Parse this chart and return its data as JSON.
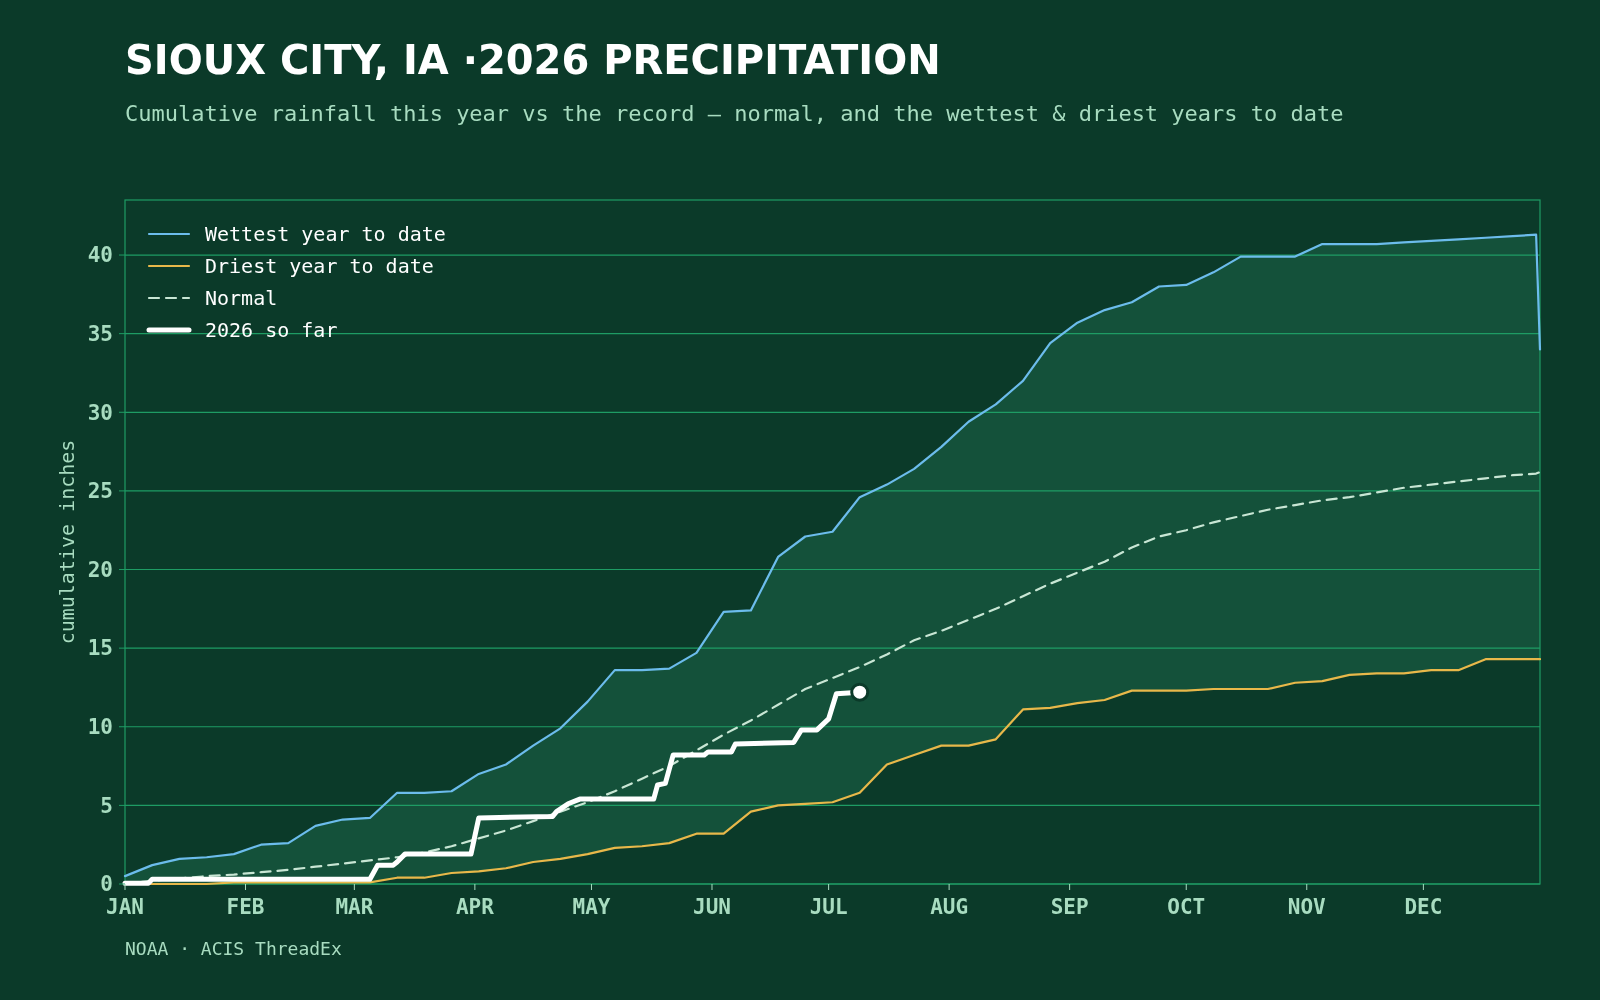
{
  "chart_data": {
    "type": "line",
    "title": "SIOUX CITY, IA ·2026 PRECIPITATION",
    "subtitle": "Cumulative rainfall this year vs the record — normal, and the wettest & driest years to date",
    "ylabel": "cumulative inches",
    "annotations": [
      "NOAA · ACIS ThreadEx"
    ],
    "x": [
      "2026-01-01",
      "2026-01-08",
      "2026-01-15",
      "2026-01-22",
      "2026-01-29",
      "2026-02-05",
      "2026-02-12",
      "2026-02-19",
      "2026-02-26",
      "2026-03-05",
      "2026-03-12",
      "2026-03-19",
      "2026-03-26",
      "2026-04-02",
      "2026-04-09",
      "2026-04-16",
      "2026-04-23",
      "2026-04-30",
      "2026-05-07",
      "2026-05-14",
      "2026-05-21",
      "2026-05-28",
      "2026-06-04",
      "2026-06-11",
      "2026-06-18",
      "2026-06-25",
      "2026-07-02",
      "2026-07-09",
      "2026-07-16",
      "2026-07-23",
      "2026-07-30",
      "2026-08-06",
      "2026-08-13",
      "2026-08-20",
      "2026-08-27",
      "2026-09-03",
      "2026-09-10",
      "2026-09-17",
      "2026-09-24",
      "2026-10-01",
      "2026-10-08",
      "2026-10-15",
      "2026-10-22",
      "2026-10-29",
      "2026-11-05",
      "2026-11-12",
      "2026-11-19",
      "2026-11-26",
      "2026-12-03",
      "2026-12-10",
      "2026-12-17",
      "2026-12-24",
      "2026-12-30",
      "2026-12-31"
    ],
    "xlim": [
      "2026-01-01",
      "2026-12-31"
    ],
    "xticks": [
      {
        "value": "2026-01-01",
        "label": "JAN"
      },
      {
        "value": "2026-02-01",
        "label": "FEB"
      },
      {
        "value": "2026-03-01",
        "label": "MAR"
      },
      {
        "value": "2026-04-01",
        "label": "APR"
      },
      {
        "value": "2026-05-01",
        "label": "MAY"
      },
      {
        "value": "2026-06-01",
        "label": "JUN"
      },
      {
        "value": "2026-07-01",
        "label": "JUL"
      },
      {
        "value": "2026-08-01",
        "label": "AUG"
      },
      {
        "value": "2026-09-01",
        "label": "SEP"
      },
      {
        "value": "2026-10-01",
        "label": "OCT"
      },
      {
        "value": "2026-11-01",
        "label": "NOV"
      },
      {
        "value": "2026-12-01",
        "label": "DEC"
      }
    ],
    "ylim": [
      0,
      43.5
    ],
    "yticks": [
      0,
      5,
      10,
      15,
      20,
      25,
      30,
      35,
      40
    ],
    "grid": "y",
    "legend": "top left",
    "series": [
      {
        "name": "Wettest year to date",
        "color": "#6cbcec",
        "values": [
          0.5,
          1.2,
          1.6,
          1.7,
          1.9,
          2.5,
          2.6,
          3.7,
          4.1,
          4.2,
          5.8,
          5.8,
          5.9,
          7.0,
          7.6,
          8.8,
          9.9,
          11.6,
          13.6,
          13.6,
          13.7,
          14.7,
          17.3,
          17.4,
          20.8,
          22.1,
          22.4,
          24.6,
          25.4,
          26.4,
          27.8,
          29.4,
          30.5,
          32.0,
          34.4,
          35.7,
          36.5,
          37.0,
          38.0,
          38.1,
          38.9,
          39.9,
          39.9,
          39.9,
          40.7,
          40.7,
          40.7,
          40.8,
          40.9,
          41.0,
          41.1,
          41.2,
          41.3,
          34.0
        ]
      },
      {
        "name": "Driest year to date",
        "color": "#e8b84a",
        "values": [
          0,
          0,
          0,
          0,
          0.1,
          0.1,
          0.1,
          0.1,
          0.1,
          0.1,
          0.4,
          0.4,
          0.7,
          0.8,
          1.0,
          1.4,
          1.6,
          1.9,
          2.3,
          2.4,
          2.6,
          3.2,
          3.2,
          4.6,
          5.0,
          5.1,
          5.2,
          5.8,
          7.6,
          8.2,
          8.8,
          8.8,
          9.2,
          11.1,
          11.2,
          11.5,
          11.7,
          12.3,
          12.3,
          12.3,
          12.4,
          12.4,
          12.4,
          12.8,
          12.9,
          13.3,
          13.4,
          13.4,
          13.6,
          13.6,
          14.3,
          14.3,
          14.3,
          14.3
        ]
      },
      {
        "name": "Normal",
        "color": "#c8e6d4",
        "line_style": "dashed",
        "values": [
          0.05,
          0.2,
          0.35,
          0.5,
          0.6,
          0.75,
          0.9,
          1.1,
          1.3,
          1.5,
          1.7,
          2.0,
          2.4,
          2.9,
          3.4,
          4.0,
          4.6,
          5.2,
          5.9,
          6.7,
          7.5,
          8.5,
          9.5,
          10.4,
          11.4,
          12.4,
          13.1,
          13.8,
          14.6,
          15.5,
          16.1,
          16.8,
          17.5,
          18.3,
          19.1,
          19.8,
          20.5,
          21.4,
          22.1,
          22.5,
          23.0,
          23.4,
          23.8,
          24.1,
          24.4,
          24.6,
          24.9,
          25.2,
          25.4,
          25.6,
          25.8,
          26.0,
          26.1,
          26.2
        ],
        "lower": [
          0,
          0,
          0,
          0,
          0.1,
          0.1,
          0.1,
          0.1,
          0.1,
          0.1,
          0.4,
          0.4,
          0.7,
          0.8,
          1.0,
          1.4,
          1.6,
          1.9,
          2.3,
          2.4,
          2.6,
          3.2,
          3.2,
          4.6,
          5.0,
          5.1,
          5.2,
          5.8,
          7.6,
          8.2,
          8.8,
          8.8,
          9.2,
          11.1,
          11.2,
          11.5,
          11.7,
          12.3,
          12.3,
          12.3,
          12.4,
          12.4,
          12.4,
          12.8,
          12.9,
          13.3,
          13.4,
          13.4,
          13.6,
          13.6,
          14.3,
          14.3,
          14.3,
          14.3
        ],
        "upper": [
          0.5,
          1.2,
          1.6,
          1.7,
          1.9,
          2.5,
          2.6,
          3.7,
          4.1,
          4.2,
          5.8,
          5.8,
          5.9,
          7.0,
          7.6,
          8.8,
          9.9,
          11.6,
          13.6,
          13.6,
          13.7,
          14.7,
          17.3,
          17.4,
          20.8,
          22.1,
          22.4,
          24.6,
          25.4,
          26.4,
          27.8,
          29.4,
          30.5,
          32.0,
          34.4,
          35.7,
          36.5,
          37.0,
          38.0,
          38.1,
          38.9,
          39.9,
          39.9,
          39.9,
          40.7,
          40.7,
          40.7,
          40.8,
          40.9,
          41.0,
          41.1,
          41.2,
          41.3,
          34.0
        ]
      },
      {
        "name": "2026 so far",
        "color": "#ffffff",
        "x": [
          "2026-01-01",
          "2026-01-07",
          "2026-01-08",
          "2026-03-05",
          "2026-03-07",
          "2026-03-11",
          "2026-03-12",
          "2026-03-14",
          "2026-03-31",
          "2026-04-02",
          "2026-04-21",
          "2026-04-22",
          "2026-04-25",
          "2026-04-28",
          "2026-05-17",
          "2026-05-18",
          "2026-05-20",
          "2026-05-22",
          "2026-05-30",
          "2026-05-31",
          "2026-06-06",
          "2026-06-07",
          "2026-06-22",
          "2026-06-24",
          "2026-06-28",
          "2026-07-01",
          "2026-07-03",
          "2026-07-09"
        ],
        "values": [
          0.05,
          0.05,
          0.3,
          0.3,
          1.2,
          1.2,
          1.4,
          1.9,
          1.9,
          4.2,
          4.3,
          4.6,
          5.1,
          5.4,
          5.4,
          6.3,
          6.4,
          8.2,
          8.2,
          8.4,
          8.4,
          8.9,
          9.0,
          9.8,
          9.8,
          10.5,
          12.1,
          12.2
        ]
      },
      {
        "type": "scatter",
        "color": "#ffffff",
        "marker": "circle",
        "x": [
          "2026-07-09"
        ],
        "values": [
          12.2
        ]
      }
    ]
  }
}
